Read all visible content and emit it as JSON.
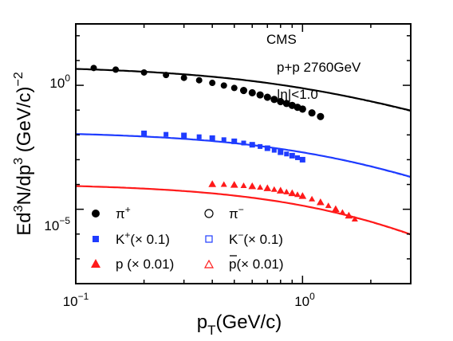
{
  "chart_data": {
    "type": "scatter",
    "title": "",
    "xlabel": {
      "main": "p",
      "sub": "T",
      "unit": "(GeV/c)"
    },
    "ylabel": {
      "p1": "Ed",
      "s1": "3",
      "p2": "N/dp",
      "s2": "3",
      "p3": " (GeV/c)",
      "s3": "−2"
    },
    "xscale": "log",
    "yscale": "log",
    "xlim": [
      0.1,
      3.0
    ],
    "ylim": [
      1e-08,
      300
    ],
    "xticks": [
      {
        "value": 0.1,
        "base": "10",
        "exp": "−1"
      },
      {
        "value": 1.0,
        "base": "10",
        "exp": "0"
      }
    ],
    "yticks": [
      {
        "value": 1e-05,
        "base": "10",
        "exp": "−5"
      },
      {
        "value": 1.0,
        "base": "10",
        "exp": "0"
      }
    ],
    "grid": false,
    "annotations": [
      "CMS",
      "p+p  2760GeV",
      "|η|<1.0"
    ],
    "legend": {
      "placement": "bottom-left",
      "entries": [
        {
          "label": "π",
          "sup": "+",
          "marker": "circle",
          "filled": true,
          "color": "#000000"
        },
        {
          "label": "π",
          "sup": "−",
          "marker": "circle",
          "filled": false,
          "color": "#000000"
        },
        {
          "label": "K",
          "sup": "+",
          "suffix": "(× 0.1)",
          "marker": "square",
          "filled": true,
          "color": "#1f3cff"
        },
        {
          "label": "K",
          "sup": "−",
          "suffix": "(× 0.1)",
          "marker": "square",
          "filled": false,
          "color": "#1f3cff"
        },
        {
          "label": "p",
          "sup": "",
          "suffix": " (× 0.01)",
          "marker": "triangle",
          "filled": true,
          "color": "#ff1a1a"
        },
        {
          "label": "p",
          "sup": "",
          "bar": true,
          "suffix": "(× 0.01)",
          "marker": "triangle",
          "filled": false,
          "color": "#ff1a1a"
        }
      ]
    },
    "series": [
      {
        "name": "π+",
        "color": "#000000",
        "marker": "circle",
        "filled": true,
        "points": [
          [
            0.12,
            5.0
          ],
          [
            0.15,
            4.3
          ],
          [
            0.2,
            3.3
          ],
          [
            0.25,
            2.6
          ],
          [
            0.3,
            2.0
          ],
          [
            0.35,
            1.6
          ],
          [
            0.4,
            1.25
          ],
          [
            0.45,
            0.98
          ],
          [
            0.5,
            0.78
          ],
          [
            0.55,
            0.62
          ],
          [
            0.6,
            0.5
          ],
          [
            0.65,
            0.41
          ],
          [
            0.7,
            0.33
          ],
          [
            0.75,
            0.27
          ],
          [
            0.8,
            0.22
          ],
          [
            0.85,
            0.185
          ],
          [
            0.9,
            0.155
          ],
          [
            0.95,
            0.13
          ],
          [
            1.0,
            0.11
          ],
          [
            1.1,
            0.077
          ],
          [
            1.2,
            0.055
          ]
        ]
      },
      {
        "name": "π−",
        "color": "#000000",
        "marker": "circle",
        "filled": false,
        "points": [
          [
            0.55,
            0.62
          ],
          [
            0.6,
            0.5
          ],
          [
            0.65,
            0.41
          ],
          [
            0.7,
            0.33
          ],
          [
            0.75,
            0.27
          ],
          [
            0.8,
            0.22
          ],
          [
            0.85,
            0.185
          ],
          [
            0.9,
            0.155
          ],
          [
            0.95,
            0.13
          ],
          [
            1.0,
            0.11
          ],
          [
            1.1,
            0.077
          ],
          [
            1.2,
            0.055
          ]
        ]
      },
      {
        "name": "K+ (× 0.1)",
        "color": "#1f3cff",
        "marker": "square",
        "filled": true,
        "points": [
          [
            0.2,
            0.0115
          ],
          [
            0.25,
            0.0105
          ],
          [
            0.3,
            0.0095
          ],
          [
            0.35,
            0.0084
          ],
          [
            0.4,
            0.0074
          ],
          [
            0.45,
            0.0064
          ],
          [
            0.5,
            0.0055
          ],
          [
            0.55,
            0.0047
          ],
          [
            0.6,
            0.004
          ],
          [
            0.65,
            0.0034
          ],
          [
            0.7,
            0.0029
          ],
          [
            0.75,
            0.0024
          ],
          [
            0.8,
            0.002
          ],
          [
            0.85,
            0.0017
          ],
          [
            0.9,
            0.00145
          ],
          [
            0.95,
            0.0012
          ],
          [
            1.0,
            0.001
          ]
        ]
      },
      {
        "name": "K− (× 0.1)",
        "color": "#1f3cff",
        "marker": "square",
        "filled": false,
        "points": [
          [
            0.2,
            0.0115
          ],
          [
            0.3,
            0.0095
          ],
          [
            0.4,
            0.0074
          ],
          [
            0.5,
            0.0055
          ],
          [
            0.6,
            0.004
          ],
          [
            0.7,
            0.0029
          ],
          [
            0.8,
            0.002
          ],
          [
            0.9,
            0.00145
          ],
          [
            1.0,
            0.001
          ]
        ]
      },
      {
        "name": "p (× 0.01)",
        "color": "#ff1a1a",
        "marker": "triangle",
        "filled": true,
        "points": [
          [
            0.4,
            0.000102
          ],
          [
            0.45,
            0.0001
          ],
          [
            0.5,
            9.6e-05
          ],
          [
            0.55,
            9e-05
          ],
          [
            0.6,
            8.4e-05
          ],
          [
            0.65,
            7.7e-05
          ],
          [
            0.7,
            7e-05
          ],
          [
            0.75,
            6.3e-05
          ],
          [
            0.8,
            5.6e-05
          ],
          [
            0.85,
            5e-05
          ],
          [
            0.9,
            4.4e-05
          ],
          [
            0.95,
            3.9e-05
          ],
          [
            1.0,
            3.4e-05
          ],
          [
            1.1,
            2.6e-05
          ],
          [
            1.2,
            1.9e-05
          ],
          [
            1.3,
            1.4e-05
          ],
          [
            1.4,
            1e-05
          ],
          [
            1.5,
            7.5e-06
          ],
          [
            1.6,
            5.5e-06
          ],
          [
            1.7,
            4e-06
          ]
        ]
      },
      {
        "name": "p̄ (× 0.01)",
        "color": "#ff1a1a",
        "marker": "triangle",
        "filled": false,
        "points": [
          [
            0.4,
            0.000102
          ],
          [
            0.5,
            9.6e-05
          ],
          [
            0.6,
            8.4e-05
          ],
          [
            0.7,
            7e-05
          ],
          [
            0.8,
            5.6e-05
          ],
          [
            0.9,
            4.4e-05
          ],
          [
            1.0,
            3.4e-05
          ],
          [
            1.2,
            1.9e-05
          ],
          [
            1.4,
            1e-05
          ],
          [
            1.6,
            5.5e-06
          ]
        ]
      }
    ],
    "fits": [
      {
        "name": "π fit",
        "color": "#000000",
        "n0": 6.1,
        "xs": 1.0,
        "n": 3.0
      },
      {
        "name": "K fit",
        "color": "#1f3cff",
        "n0": 0.0138,
        "xs": 1.6,
        "n": 4.0
      },
      {
        "name": "p fit",
        "color": "#ff1a1a",
        "n0": 0.00011,
        "xs": 2.2,
        "n": 5.5
      }
    ]
  }
}
